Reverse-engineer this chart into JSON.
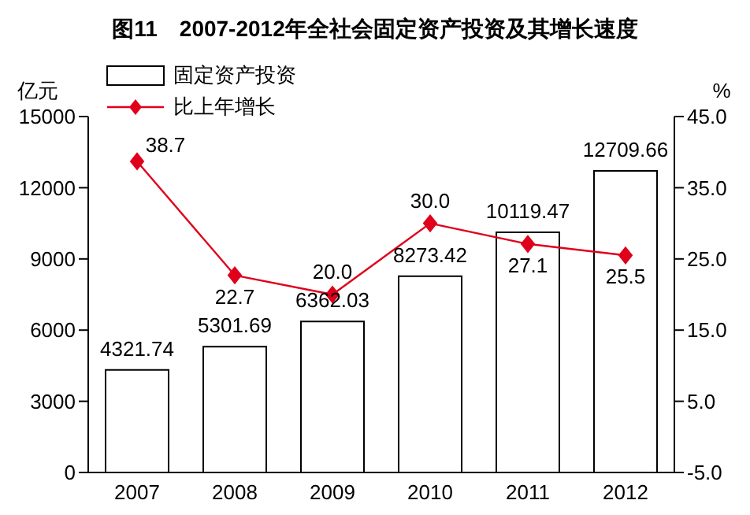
{
  "chart_data": {
    "type": "bar",
    "title": "图11　2007-2012年全社会固定资产投资及其增长速度",
    "categories": [
      "2007",
      "2008",
      "2009",
      "2010",
      "2011",
      "2012"
    ],
    "series": [
      {
        "name": "固定资产投资",
        "color": "#ffffff",
        "values": [
          4321.74,
          5301.69,
          6362.03,
          8273.42,
          10119.47,
          12709.66
        ],
        "value_labels": [
          "4321.74",
          "5301.69",
          "6362.03",
          "8273.42",
          "10119.47",
          "12709.66"
        ]
      },
      {
        "name": "比上年增长",
        "type": "line",
        "axis": "y2",
        "color": "#e0001b",
        "marker": "diamond",
        "values": [
          38.7,
          22.7,
          20.0,
          30.0,
          27.1,
          25.5
        ],
        "value_labels": [
          "38.7",
          "22.7",
          "20.0",
          "30.0",
          "27.1",
          "25.5"
        ]
      }
    ],
    "ylabel": "亿元",
    "y2label": "%",
    "ylim": [
      0,
      15000
    ],
    "yticks": [
      0,
      3000,
      6000,
      9000,
      12000,
      15000
    ],
    "y2lim": [
      -5,
      45
    ],
    "y2ticks": [
      {
        "value": -5,
        "label": "-5.0"
      },
      {
        "value": 5,
        "label": "5.0"
      },
      {
        "value": 15,
        "label": "15.0"
      },
      {
        "value": 25,
        "label": "25.0"
      },
      {
        "value": 35,
        "label": "35.0"
      },
      {
        "value": 45,
        "label": "45.0"
      }
    ],
    "legend": "top left",
    "grid": false
  }
}
